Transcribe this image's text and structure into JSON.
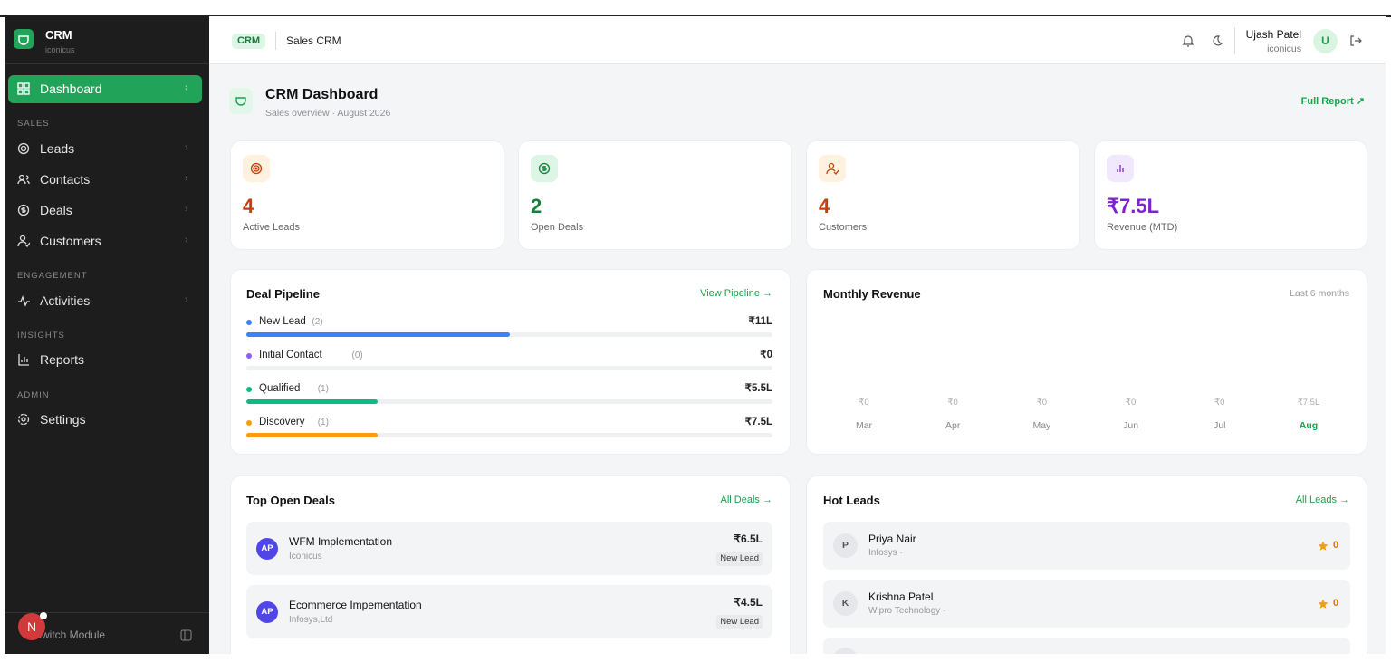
{
  "sidebar": {
    "brand": {
      "name": "CRM",
      "org": "iconicus"
    },
    "primary": "Dashboard",
    "sections": [
      {
        "label": "SALES",
        "items": [
          "Leads",
          "Contacts",
          "Deals",
          "Customers"
        ]
      },
      {
        "label": "ENGAGEMENT",
        "items": [
          "Activities"
        ]
      },
      {
        "label": "INSIGHTS",
        "items": [
          "Reports"
        ]
      },
      {
        "label": "ADMIN",
        "items": [
          "Settings"
        ]
      }
    ],
    "footer": "Switch Module",
    "badge": "N"
  },
  "topbar": {
    "badge": "CRM",
    "title": "Sales CRM",
    "user": {
      "name": "Ujash Patel",
      "org": "iconicus",
      "initial": "U"
    }
  },
  "header": {
    "title": "CRM Dashboard",
    "subtitle": "Sales overview · August 2026",
    "link": "Full Report ↗"
  },
  "stats": [
    {
      "value": "4",
      "label": "Active Leads"
    },
    {
      "value": "2",
      "label": "Open Deals"
    },
    {
      "value": "4",
      "label": "Customers"
    },
    {
      "value": "₹7.5L",
      "label": "Revenue (MTD)"
    }
  ],
  "pipeline": {
    "title": "Deal Pipeline",
    "link": "View Pipeline →",
    "stages": [
      {
        "name": "New Lead",
        "count": {
          "value": 2,
          "label": "(2)"
        },
        "amount": "₹11L"
      },
      {
        "name": "Initial Contact",
        "count": {
          "value": 0,
          "label": "(0)"
        },
        "amount": "₹0"
      },
      {
        "name": "Qualified",
        "count": {
          "value": 1,
          "label": "(1)"
        },
        "amount": "₹5.5L"
      },
      {
        "name": "Discovery",
        "count": {
          "value": 1,
          "label": "(1)"
        },
        "amount": "₹7.5L"
      }
    ]
  },
  "revenue": {
    "title": "Monthly Revenue",
    "range": "Last 6 months",
    "months": [
      {
        "month": "Mar",
        "amount": "₹0"
      },
      {
        "month": "Apr",
        "amount": "₹0"
      },
      {
        "month": "May",
        "amount": "₹0"
      },
      {
        "month": "Jun",
        "amount": "₹0"
      },
      {
        "month": "Jul",
        "amount": "₹0"
      },
      {
        "month": "Aug",
        "amount": "₹7.5L"
      }
    ]
  },
  "deals": {
    "title": "Top Open Deals",
    "link": "All Deals →",
    "items": [
      {
        "initials": "AP",
        "name": "WFM Implementation",
        "org": "Iconicus",
        "amount": "₹6.5L",
        "stage": "New Lead"
      },
      {
        "initials": "AP",
        "name": "Ecommerce Impementation",
        "org": "Infosys,Ltd",
        "amount": "₹4.5L",
        "stage": "New Lead"
      }
    ]
  },
  "leads": {
    "title": "Hot Leads",
    "link": "All Leads →",
    "items": [
      {
        "initial": "P",
        "name": "Priya Nair",
        "org": "Infosys ·",
        "score": 0
      },
      {
        "initial": "K",
        "name": "Krishna Patel",
        "org": "Wipro Technology ·",
        "score": 0
      }
    ]
  }
}
